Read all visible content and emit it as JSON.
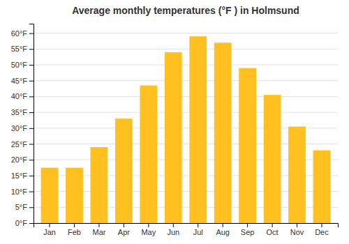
{
  "chart_data": {
    "type": "bar",
    "title": "Average monthly temperatures (°F ) in Holmsund",
    "categories": [
      "Jan",
      "Feb",
      "Mar",
      "Apr",
      "May",
      "Jun",
      "Jul",
      "Aug",
      "Sep",
      "Oct",
      "Nov",
      "Dec"
    ],
    "values": [
      17.5,
      17.5,
      24.0,
      33.0,
      43.5,
      54.0,
      59.0,
      57.0,
      49.0,
      40.5,
      30.5,
      23.0
    ],
    "color": "#FFC020",
    "ylim": [
      0,
      63
    ],
    "yticks": [
      {
        "value": 0,
        "label": "0°F"
      },
      {
        "value": 5,
        "label": "5°F"
      },
      {
        "value": 10,
        "label": "10°F"
      },
      {
        "value": 15,
        "label": "15°F"
      },
      {
        "value": 20,
        "label": "20°F"
      },
      {
        "value": 25,
        "label": "25°F"
      },
      {
        "value": 30,
        "label": "30°F"
      },
      {
        "value": 35,
        "label": "35°F"
      },
      {
        "value": 40,
        "label": "40°F"
      },
      {
        "value": 45,
        "label": "45°F"
      },
      {
        "value": 50,
        "label": "50°F"
      },
      {
        "value": 55,
        "label": "55°F"
      },
      {
        "value": 60,
        "label": "60°F"
      }
    ],
    "grid": true
  }
}
